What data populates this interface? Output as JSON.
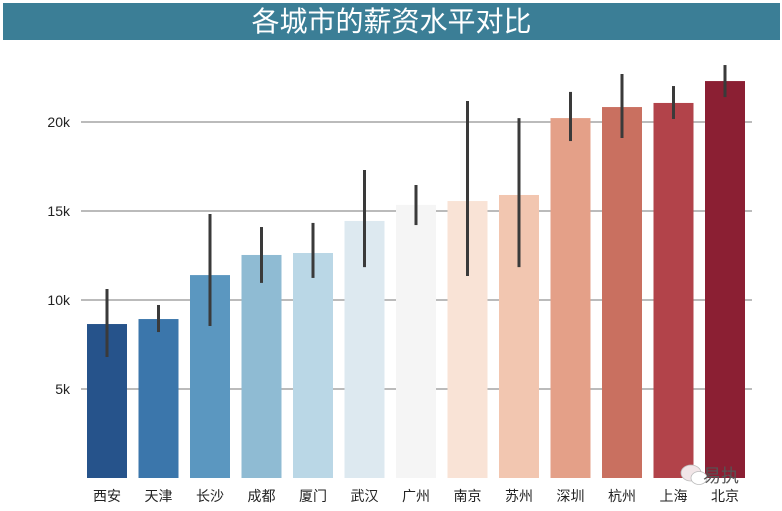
{
  "chart_data": {
    "type": "bar",
    "title": "各城市的薪资水平对比",
    "xlabel": "",
    "ylabel": "",
    "categories": [
      "西安",
      "天津",
      "长沙",
      "成都",
      "厦门",
      "武汉",
      "广州",
      "南京",
      "苏州",
      "深圳",
      "杭州",
      "上海",
      "北京"
    ],
    "values": [
      8650,
      8930,
      11400,
      12530,
      12640,
      14440,
      15340,
      15560,
      15900,
      20220,
      20840,
      21070,
      22300
    ],
    "error_low": [
      6800,
      8200,
      8540,
      10960,
      11240,
      11850,
      14210,
      11350,
      11850,
      18930,
      19100,
      20170,
      21400
    ],
    "error_high": [
      10620,
      9720,
      14830,
      14100,
      14330,
      17300,
      16460,
      21180,
      20220,
      21690,
      22700,
      22020,
      23200
    ],
    "colors": [
      "#26538b",
      "#3b76ab",
      "#5b97c0",
      "#8fbbd3",
      "#bad7e6",
      "#dde9f0",
      "#f5f5f5",
      "#f9e3d6",
      "#f2c6b0",
      "#e4a088",
      "#c97060",
      "#b2434a",
      "#8b1f33"
    ],
    "yticks": [
      5000,
      10000,
      15000,
      20000
    ],
    "ytick_labels": [
      "5k",
      "10k",
      "15k",
      "20k"
    ],
    "ylim": [
      0,
      24000
    ],
    "grid": "horizontal",
    "legend": "none"
  },
  "watermark": {
    "text": "易执",
    "icon": "wechat-icon"
  }
}
